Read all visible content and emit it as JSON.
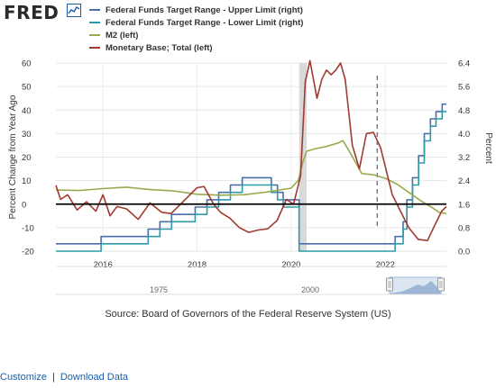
{
  "brand": {
    "name": "FRED"
  },
  "legend": [
    {
      "label": "Federal Funds Target Range - Upper Limit (right)",
      "color": "#4a6fa8"
    },
    {
      "label": "Federal Funds Target Range - Lower Limit (right)",
      "color": "#2e9aa8"
    },
    {
      "label": "M2 (left)",
      "color": "#9aab4e"
    },
    {
      "label": "Monetary Base; Total (left)",
      "color": "#a03a32"
    }
  ],
  "chart_data": {
    "type": "line",
    "ylabel_left": "Percent Change from Year Ago",
    "ylabel_right": "Percent",
    "ylim_left": [
      -20,
      60
    ],
    "ylim_right": [
      0,
      6.4
    ],
    "xlim": [
      2015,
      2023.3
    ],
    "left_ticks": [
      "60",
      "50",
      "40",
      "30",
      "20",
      "10",
      "0",
      "-10",
      "-20"
    ],
    "right_ticks": [
      "6.4",
      "5.6",
      "4.8",
      "4.0",
      "3.2",
      "2.4",
      "1.6",
      "0.8",
      "0.0"
    ],
    "x_ticks": [
      "2016",
      "2018",
      "2020",
      "2022"
    ],
    "recession": [
      2020.17,
      2020.33
    ],
    "reference_date": 2021.83,
    "zero_line": 0,
    "series": [
      {
        "name": "Federal Funds Target Range - Upper Limit (right)",
        "axis": "right",
        "color": "#4a6fa8",
        "step": true,
        "points": [
          [
            2015.0,
            0.25
          ],
          [
            2015.96,
            0.5
          ],
          [
            2016.96,
            0.75
          ],
          [
            2017.21,
            1.0
          ],
          [
            2017.46,
            1.25
          ],
          [
            2017.96,
            1.5
          ],
          [
            2018.21,
            1.75
          ],
          [
            2018.46,
            2.0
          ],
          [
            2018.71,
            2.25
          ],
          [
            2018.96,
            2.5
          ],
          [
            2019.58,
            2.25
          ],
          [
            2019.71,
            2.0
          ],
          [
            2019.83,
            1.75
          ],
          [
            2020.17,
            0.25
          ],
          [
            2022.21,
            0.5
          ],
          [
            2022.38,
            1.0
          ],
          [
            2022.46,
            1.75
          ],
          [
            2022.58,
            2.5
          ],
          [
            2022.71,
            3.25
          ],
          [
            2022.83,
            4.0
          ],
          [
            2022.96,
            4.5
          ],
          [
            2023.08,
            4.75
          ],
          [
            2023.21,
            5.0
          ],
          [
            2023.3,
            5.0
          ]
        ]
      },
      {
        "name": "Federal Funds Target Range - Lower Limit (right)",
        "axis": "right",
        "color": "#2e9aa8",
        "step": true,
        "points": [
          [
            2015.0,
            0.0
          ],
          [
            2015.96,
            0.25
          ],
          [
            2016.96,
            0.5
          ],
          [
            2017.21,
            0.75
          ],
          [
            2017.46,
            1.0
          ],
          [
            2017.96,
            1.25
          ],
          [
            2018.21,
            1.5
          ],
          [
            2018.46,
            1.75
          ],
          [
            2018.71,
            2.0
          ],
          [
            2018.96,
            2.25
          ],
          [
            2019.58,
            2.0
          ],
          [
            2019.71,
            1.75
          ],
          [
            2019.83,
            1.5
          ],
          [
            2020.17,
            0.0
          ],
          [
            2022.21,
            0.25
          ],
          [
            2022.38,
            0.75
          ],
          [
            2022.46,
            1.5
          ],
          [
            2022.58,
            2.25
          ],
          [
            2022.71,
            3.0
          ],
          [
            2022.83,
            3.75
          ],
          [
            2022.96,
            4.25
          ],
          [
            2023.08,
            4.5
          ],
          [
            2023.21,
            4.75
          ],
          [
            2023.3,
            4.75
          ]
        ]
      },
      {
        "name": "M2 (left)",
        "axis": "left",
        "color": "#9aab4e",
        "step": false,
        "points": [
          [
            2015.0,
            6.0
          ],
          [
            2015.5,
            5.8
          ],
          [
            2016.0,
            6.6
          ],
          [
            2016.5,
            7.2
          ],
          [
            2017.0,
            6.2
          ],
          [
            2017.5,
            5.6
          ],
          [
            2018.0,
            4.2
          ],
          [
            2018.5,
            3.8
          ],
          [
            2019.0,
            4.0
          ],
          [
            2019.5,
            5.2
          ],
          [
            2020.0,
            6.8
          ],
          [
            2020.15,
            10.0
          ],
          [
            2020.25,
            18.0
          ],
          [
            2020.33,
            22.5
          ],
          [
            2020.5,
            23.5
          ],
          [
            2020.75,
            24.5
          ],
          [
            2021.0,
            26.0
          ],
          [
            2021.1,
            27.0
          ],
          [
            2021.25,
            22.0
          ],
          [
            2021.5,
            13.0
          ],
          [
            2021.75,
            12.5
          ],
          [
            2022.0,
            11.0
          ],
          [
            2022.25,
            8.5
          ],
          [
            2022.5,
            5.0
          ],
          [
            2022.75,
            1.5
          ],
          [
            2023.0,
            -1.5
          ],
          [
            2023.15,
            -3.5
          ],
          [
            2023.3,
            -4.0
          ]
        ]
      },
      {
        "name": "Monetary Base; Total (left)",
        "axis": "left",
        "color": "#a03a32",
        "step": false,
        "points": [
          [
            2015.0,
            8.0
          ],
          [
            2015.1,
            2.0
          ],
          [
            2015.25,
            4.0
          ],
          [
            2015.45,
            -2.5
          ],
          [
            2015.65,
            1.0
          ],
          [
            2015.85,
            -3.0
          ],
          [
            2016.0,
            4.0
          ],
          [
            2016.15,
            -5.0
          ],
          [
            2016.3,
            -1.0
          ],
          [
            2016.5,
            -2.0
          ],
          [
            2016.75,
            -6.5
          ],
          [
            2017.0,
            0.5
          ],
          [
            2017.25,
            -3.5
          ],
          [
            2017.45,
            -4.0
          ],
          [
            2017.65,
            0.0
          ],
          [
            2017.85,
            4.0
          ],
          [
            2018.0,
            7.0
          ],
          [
            2018.15,
            7.5
          ],
          [
            2018.35,
            0.0
          ],
          [
            2018.5,
            -3.5
          ],
          [
            2018.7,
            -6.0
          ],
          [
            2018.9,
            -10.0
          ],
          [
            2019.1,
            -12.0
          ],
          [
            2019.3,
            -11.0
          ],
          [
            2019.5,
            -10.5
          ],
          [
            2019.7,
            -7.0
          ],
          [
            2019.9,
            2.0
          ],
          [
            2020.05,
            0.0
          ],
          [
            2020.2,
            12.0
          ],
          [
            2020.3,
            52.0
          ],
          [
            2020.4,
            61.0
          ],
          [
            2020.55,
            45.0
          ],
          [
            2020.65,
            53.0
          ],
          [
            2020.75,
            57.0
          ],
          [
            2020.85,
            55.0
          ],
          [
            2020.95,
            57.0
          ],
          [
            2021.05,
            60.0
          ],
          [
            2021.15,
            53.0
          ],
          [
            2021.3,
            25.0
          ],
          [
            2021.45,
            15.0
          ],
          [
            2021.6,
            30.0
          ],
          [
            2021.75,
            30.5
          ],
          [
            2021.9,
            24.0
          ],
          [
            2022.0,
            16.0
          ],
          [
            2022.15,
            4.0
          ],
          [
            2022.3,
            -2.0
          ],
          [
            2022.5,
            -10.0
          ],
          [
            2022.7,
            -15.0
          ],
          [
            2022.9,
            -15.5
          ],
          [
            2023.05,
            -9.0
          ],
          [
            2023.2,
            -3.0
          ],
          [
            2023.3,
            -1.0
          ]
        ]
      }
    ]
  },
  "navigator": {
    "labels": [
      "1975",
      "2000"
    ]
  },
  "source_text": "Source: Board of Governors of the Federal Reserve System (US)",
  "footer": {
    "customize_label": "Customize",
    "separator": "|",
    "download_label": "Download Data"
  }
}
